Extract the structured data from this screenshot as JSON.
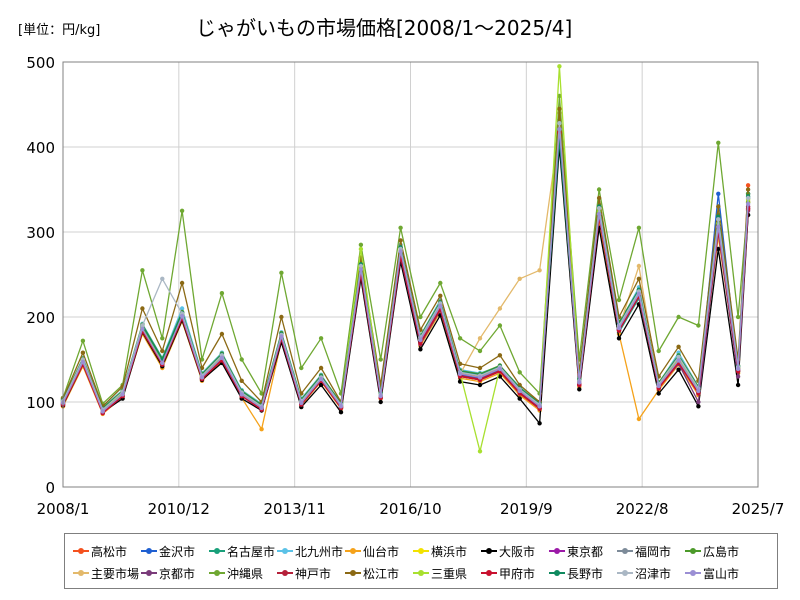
{
  "chart_data": {
    "type": "line",
    "title": "じゃがいもの市場価格[2008/1～2025/4]",
    "unit_label": "[単位：円/kg]",
    "xlabel": "",
    "ylabel": "",
    "ylim": [
      0,
      500
    ],
    "yticks": [
      0,
      100,
      200,
      300,
      400,
      500
    ],
    "x_range": [
      "2008/1",
      "2025/7"
    ],
    "xticks": [
      "2008/1",
      "2010/12",
      "2013/11",
      "2016/10",
      "2019/9",
      "2022/8",
      "2025/7"
    ],
    "grid": true,
    "legend_position": "bottom",
    "x": [
      "2008/1",
      "2008/7",
      "2009/1",
      "2009/7",
      "2010/1",
      "2010/7",
      "2011/1",
      "2011/7",
      "2012/1",
      "2012/7",
      "2013/1",
      "2013/7",
      "2014/1",
      "2014/7",
      "2015/1",
      "2015/7",
      "2016/1",
      "2016/7",
      "2017/1",
      "2017/7",
      "2018/1",
      "2018/7",
      "2019/1",
      "2019/7",
      "2020/1",
      "2020/7",
      "2021/1",
      "2021/7",
      "2022/1",
      "2022/7",
      "2023/1",
      "2023/7",
      "2024/1",
      "2024/7",
      "2025/1",
      "2025/4"
    ],
    "series": [
      {
        "name": "高松市",
        "color": "#f4511e",
        "values": [
          95,
          150,
          90,
          110,
          190,
          145,
          205,
          130,
          155,
          110,
          95,
          180,
          100,
          130,
          95,
          260,
          110,
          280,
          175,
          215,
          135,
          130,
          140,
          115,
          95,
          440,
          125,
          330,
          190,
          230,
          120,
          150,
          115,
          320,
          140,
          355
        ]
      },
      {
        "name": "金沢市",
        "color": "#1e5fd1",
        "values": [
          100,
          148,
          92,
          112,
          188,
          150,
          200,
          132,
          152,
          112,
          94,
          178,
          100,
          128,
          96,
          255,
          108,
          275,
          172,
          212,
          132,
          128,
          138,
          112,
          94,
          420,
          122,
          320,
          185,
          225,
          118,
          148,
          112,
          345,
          138,
          345
        ]
      },
      {
        "name": "名古屋市",
        "color": "#19a07a",
        "values": [
          98,
          145,
          88,
          108,
          185,
          148,
          198,
          128,
          150,
          108,
          92,
          175,
          98,
          126,
          94,
          252,
          106,
          272,
          170,
          210,
          130,
          126,
          136,
          110,
          92,
          410,
          120,
          315,
          182,
          222,
          116,
          146,
          110,
          300,
          136,
          320
        ]
      },
      {
        "name": "北九州市",
        "color": "#5bc2e7",
        "values": [
          102,
          152,
          94,
          114,
          192,
          152,
          210,
          134,
          158,
          114,
          98,
          182,
          104,
          132,
          98,
          265,
          112,
          285,
          178,
          220,
          138,
          134,
          142,
          118,
          98,
          430,
          128,
          330,
          192,
          235,
          122,
          158,
          118,
          330,
          142,
          340
        ]
      },
      {
        "name": "仙台市",
        "color": "#f5a21a",
        "values": [
          95,
          142,
          86,
          106,
          180,
          140,
          195,
          125,
          148,
          105,
          68,
          172,
          96,
          124,
          92,
          248,
          104,
          268,
          166,
          206,
          128,
          124,
          134,
          108,
          90,
          405,
          118,
          310,
          180,
          80,
          114,
          144,
          108,
          295,
          134,
          330
        ]
      },
      {
        "name": "横浜市",
        "color": "#f2e200",
        "values": [
          100,
          146,
          90,
          110,
          186,
          146,
          202,
          130,
          154,
          110,
          96,
          178,
          100,
          128,
          95,
          258,
          108,
          278,
          174,
          214,
          134,
          130,
          140,
          114,
          96,
          425,
          124,
          325,
          188,
          228,
          120,
          150,
          114,
          310,
          140,
          335
        ]
      },
      {
        "name": "大阪市",
        "color": "#000000",
        "values": [
          96,
          144,
          88,
          104,
          182,
          142,
          196,
          126,
          146,
          104,
          90,
          170,
          94,
          120,
          88,
          245,
          100,
          265,
          162,
          202,
          124,
          120,
          130,
          104,
          75,
          400,
          115,
          305,
          175,
          215,
          110,
          138,
          95,
          280,
          120,
          320
        ]
      },
      {
        "name": "東京都",
        "color": "#9c1aa8",
        "values": [
          99,
          146,
          89,
          109,
          185,
          145,
          200,
          129,
          151,
          109,
          93,
          176,
          99,
          127,
          95,
          256,
          107,
          276,
          172,
          212,
          133,
          129,
          139,
          113,
          95,
          420,
          123,
          320,
          186,
          226,
          119,
          149,
          113,
          305,
          139,
          330
        ]
      },
      {
        "name": "福岡市",
        "color": "#7d8b99",
        "values": [
          101,
          149,
          91,
          111,
          189,
          149,
          204,
          131,
          155,
          111,
          95,
          179,
          101,
          129,
          97,
          260,
          109,
          280,
          176,
          216,
          135,
          131,
          141,
          115,
          97,
          428,
          125,
          328,
          190,
          230,
          121,
          153,
          116,
          315,
          141,
          340
        ]
      },
      {
        "name": "広島市",
        "color": "#4c9a2a",
        "values": [
          103,
          151,
          93,
          113,
          191,
          151,
          206,
          133,
          157,
          113,
          97,
          181,
          103,
          131,
          99,
          262,
          111,
          282,
          178,
          218,
          137,
          133,
          143,
          117,
          99,
          432,
          127,
          332,
          194,
          232,
          123,
          155,
          118,
          320,
          143,
          345
        ]
      },
      {
        "name": "主要市場",
        "color": "#e3b96b",
        "values": [
          99,
          147,
          89,
          109,
          186,
          147,
          201,
          130,
          152,
          110,
          94,
          177,
          100,
          127,
          95,
          257,
          107,
          277,
          173,
          213,
          133,
          175,
          210,
          245,
          255,
          423,
          123,
          323,
          187,
          260,
          119,
          150,
          114,
          312,
          139,
          336
        ]
      },
      {
        "name": "京都市",
        "color": "#7a3b7a",
        "values": [
          97,
          145,
          87,
          107,
          184,
          144,
          199,
          128,
          149,
          107,
          91,
          174,
          97,
          125,
          93,
          250,
          105,
          270,
          168,
          208,
          130,
          126,
          136,
          110,
          92,
          415,
          120,
          318,
          184,
          224,
          117,
          145,
          100,
          300,
          130,
          325
        ]
      },
      {
        "name": "沖縄県",
        "color": "#6fa832",
        "values": [
          105,
          172,
          98,
          120,
          255,
          175,
          325,
          150,
          228,
          150,
          110,
          252,
          140,
          175,
          110,
          285,
          150,
          305,
          200,
          240,
          175,
          160,
          190,
          135,
          110,
          460,
          150,
          350,
          220,
          305,
          160,
          200,
          190,
          405,
          200,
          335
        ]
      },
      {
        "name": "神戸市",
        "color": "#b5203a",
        "values": [
          98,
          146,
          88,
          108,
          184,
          146,
          200,
          128,
          150,
          108,
          92,
          176,
          98,
          126,
          94,
          254,
          106,
          274,
          170,
          210,
          131,
          127,
          137,
          111,
          93,
          418,
          121,
          319,
          185,
          225,
          117,
          147,
          111,
          303,
          137,
          328
        ]
      },
      {
        "name": "松江市",
        "color": "#8b6914",
        "values": [
          104,
          158,
          95,
          118,
          210,
          160,
          240,
          140,
          180,
          125,
          100,
          200,
          110,
          140,
          100,
          270,
          120,
          290,
          185,
          225,
          145,
          140,
          155,
          120,
          100,
          445,
          135,
          340,
          200,
          245,
          130,
          165,
          125,
          330,
          150,
          350
        ]
      },
      {
        "name": "三重県",
        "color": "#a8e02f",
        "values": [
          100,
          148,
          90,
          110,
          187,
          147,
          203,
          130,
          153,
          110,
          94,
          178,
          100,
          128,
          96,
          280,
          108,
          278,
          174,
          214,
          134,
          42,
          140,
          114,
          96,
          495,
          124,
          324,
          188,
          228,
          120,
          150,
          114,
          310,
          140,
          338
        ]
      },
      {
        "name": "甲府市",
        "color": "#c8102e",
        "values": [
          97,
          144,
          87,
          107,
          183,
          144,
          198,
          127,
          149,
          107,
          91,
          174,
          97,
          125,
          93,
          251,
          105,
          271,
          169,
          209,
          130,
          126,
          136,
          110,
          92,
          417,
          120,
          317,
          184,
          224,
          116,
          146,
          110,
          302,
          136,
          327
        ]
      },
      {
        "name": "長野市",
        "color": "#0f8a5f",
        "values": [
          102,
          150,
          92,
          112,
          190,
          150,
          205,
          132,
          156,
          112,
          96,
          180,
          102,
          130,
          98,
          262,
          110,
          282,
          177,
          217,
          136,
          132,
          142,
          116,
          98,
          408,
          126,
          330,
          192,
          232,
          122,
          154,
          117,
          318,
          142,
          342
        ]
      },
      {
        "name": "沼津市",
        "color": "#aab7c4",
        "values": [
          101,
          150,
          91,
          112,
          190,
          245,
          204,
          131,
          155,
          111,
          95,
          179,
          101,
          129,
          97,
          260,
          109,
          280,
          176,
          216,
          135,
          131,
          141,
          115,
          97,
          428,
          125,
          328,
          190,
          230,
          121,
          153,
          116,
          315,
          141,
          340
        ]
      },
      {
        "name": "富山市",
        "color": "#9b8fd4",
        "values": [
          99,
          147,
          89,
          109,
          186,
          146,
          201,
          129,
          152,
          109,
          93,
          177,
          99,
          127,
          95,
          256,
          107,
          277,
          173,
          213,
          133,
          129,
          139,
          113,
          95,
          421,
          123,
          321,
          187,
          227,
          119,
          149,
          113,
          306,
          139,
          333
        ]
      }
    ]
  }
}
